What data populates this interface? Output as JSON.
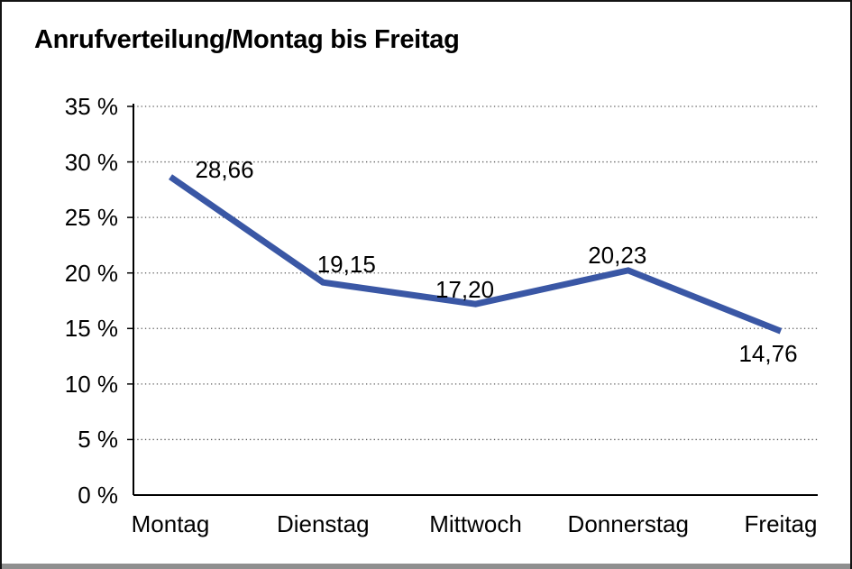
{
  "chart_data": {
    "type": "line",
    "title": "Anrufverteilung/Montag bis Freitag",
    "categories": [
      "Montag",
      "Dienstag",
      "Mittwoch",
      "Donnerstag",
      "Freitag"
    ],
    "series": [
      {
        "name": "Anrufverteilung",
        "values": [
          28.66,
          19.15,
          17.2,
          20.23,
          14.76
        ]
      }
    ],
    "data_labels": [
      "28,66",
      "19,15",
      "17,20",
      "20,23",
      "14,76"
    ],
    "xlabel": "",
    "ylabel": "",
    "ylim": [
      0,
      35
    ],
    "ytick_step": 5,
    "ytick_labels": [
      "0 %",
      "5 %",
      "10 %",
      "15 %",
      "20 %",
      "25 %",
      "30 %",
      "35 %"
    ],
    "grid": "horizontal-dotted",
    "legend": "none",
    "colors": {
      "line": "#3a57a5",
      "text": "#000000",
      "axis": "#000000",
      "gridline": "#5a5a5a",
      "background": "#ffffff",
      "frame_border": "#141414",
      "frame_bottom": "#8f8f8f"
    }
  }
}
